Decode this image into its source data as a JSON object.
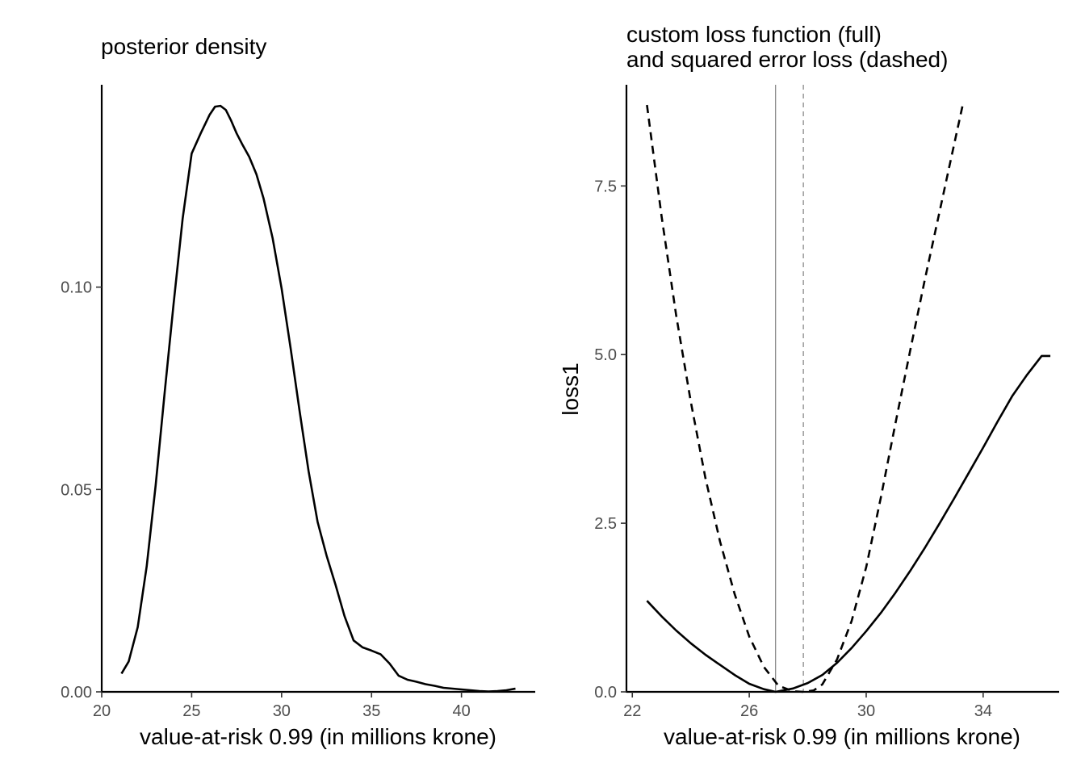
{
  "chart_data": [
    {
      "type": "line",
      "title": "posterior density",
      "xlabel": "value-at-risk 0.99 (in millions krone)",
      "ylabel": "",
      "xlim": [
        20,
        44.1
      ],
      "ylim": [
        0,
        0.15
      ],
      "xticks": [
        20,
        25,
        30,
        35,
        40
      ],
      "xtick_labels": [
        "20",
        "25",
        "30",
        "35",
        "40"
      ],
      "yticks": [
        0,
        0.05,
        0.1
      ],
      "ytick_labels": [
        "0.00",
        "0.05",
        "0.10"
      ],
      "grid": false,
      "legend": "none",
      "series": [
        {
          "style": "solid",
          "color": "#000000",
          "x": [
            21.1,
            21.5,
            22.0,
            22.5,
            23.0,
            23.5,
            24.0,
            24.5,
            25.0,
            25.5,
            26.0,
            26.3,
            26.6,
            26.9,
            27.2,
            27.5,
            27.8,
            28.2,
            28.6,
            29.0,
            29.5,
            30.0,
            30.5,
            31.0,
            31.5,
            32.0,
            32.5,
            33.0,
            33.5,
            34.0,
            34.5,
            35.0,
            35.5,
            36.0,
            36.5,
            37.0,
            37.5,
            38.0,
            38.5,
            39.0,
            39.5,
            40.0,
            40.5,
            41.0,
            41.5,
            42.0,
            42.5,
            43.0
          ],
          "y": [
            0.0045,
            0.0075,
            0.016,
            0.031,
            0.051,
            0.074,
            0.096,
            0.117,
            0.133,
            0.138,
            0.1426,
            0.1446,
            0.1448,
            0.1438,
            0.1411,
            0.138,
            0.1354,
            0.1322,
            0.1279,
            0.1219,
            0.1121,
            0.0997,
            0.0849,
            0.0694,
            0.0546,
            0.042,
            0.0337,
            0.0264,
            0.0187,
            0.0127,
            0.011,
            0.0102,
            0.0093,
            0.007,
            0.004,
            0.003,
            0.0025,
            0.0019,
            0.0015,
            0.001,
            0.0008,
            0.0006,
            0.0004,
            0.0002,
            0.0001,
            0.0002,
            0.0004,
            0.0008
          ]
        }
      ]
    },
    {
      "type": "line",
      "title": [
        "custom loss function (full)",
        "and squared error loss (dashed)"
      ],
      "xlabel": "value-at-risk 0.99 (in millions krone)",
      "ylabel": "loss1",
      "xlim": [
        21.8,
        36.6
      ],
      "ylim": [
        0,
        9.0
      ],
      "xticks": [
        22,
        26,
        30,
        34
      ],
      "xtick_labels": [
        "22",
        "26",
        "30",
        "34"
      ],
      "yticks": [
        0,
        2.5,
        5,
        7.5
      ],
      "ytick_labels": [
        "0.0",
        "2.5",
        "5.0",
        "7.5"
      ],
      "grid": false,
      "legend": "none",
      "vlines": [
        {
          "x": 26.9,
          "style": "solid",
          "color": "#808080"
        },
        {
          "x": 27.85,
          "style": "dashed",
          "color": "#808080"
        }
      ],
      "series": [
        {
          "style": "solid",
          "color": "#000000",
          "x": [
            22.5,
            23.0,
            23.5,
            24.0,
            24.5,
            25.0,
            25.5,
            26.0,
            26.5,
            26.9,
            27.5,
            28.0,
            28.5,
            29.0,
            29.5,
            30.0,
            30.5,
            31.0,
            31.5,
            32.0,
            32.5,
            33.0,
            33.5,
            34.0,
            34.5,
            35.0,
            35.5,
            36.0,
            36.3
          ],
          "y": [
            1.35,
            1.12,
            0.91,
            0.72,
            0.55,
            0.4,
            0.25,
            0.12,
            0.04,
            0.0,
            0.05,
            0.13,
            0.25,
            0.43,
            0.65,
            0.9,
            1.17,
            1.47,
            1.79,
            2.13,
            2.49,
            2.86,
            3.24,
            3.62,
            4.01,
            4.39,
            4.7,
            4.98,
            4.98
          ]
        },
        {
          "style": "dashed",
          "color": "#000000",
          "x": [
            22.5,
            23.0,
            23.5,
            24.0,
            24.5,
            25.0,
            25.5,
            26.0,
            26.5,
            27.0,
            27.5,
            27.85,
            28.2,
            28.5,
            29.0,
            29.5,
            30.0,
            30.5,
            31.0,
            31.5,
            32.0,
            32.5,
            33.0,
            33.3
          ],
          "y": [
            8.7,
            7.05,
            5.58,
            4.3,
            3.17,
            2.23,
            1.45,
            0.82,
            0.37,
            0.09,
            0.01,
            0.0,
            0.02,
            0.11,
            0.48,
            1.05,
            1.85,
            2.88,
            3.98,
            5.05,
            6.1,
            7.1,
            8.1,
            8.7
          ]
        }
      ]
    }
  ]
}
